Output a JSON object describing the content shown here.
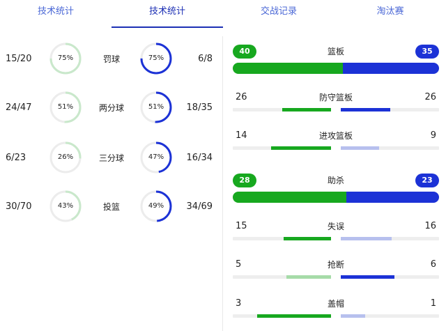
{
  "tabs": [
    {
      "label": "技术统计",
      "active": false
    },
    {
      "label": "技术统计",
      "active": true
    },
    {
      "label": "交战记录",
      "active": false
    },
    {
      "label": "淘汰赛",
      "active": false
    }
  ],
  "colors": {
    "home": "#17a81f",
    "home_light": "#a6dba8",
    "away": "#1c32d6",
    "away_light": "#b7c0ee",
    "ring_track": "#ececec",
    "ring_home_light": "#c9e8cb"
  },
  "shooting": [
    {
      "category": "罚球",
      "home_made": "15/20",
      "home_pct": 75,
      "away_made": "6/8",
      "away_pct": 75
    },
    {
      "category": "两分球",
      "home_made": "24/47",
      "home_pct": 51,
      "away_made": "18/35",
      "away_pct": 51
    },
    {
      "category": "三分球",
      "home_made": "6/23",
      "home_pct": 26,
      "away_made": "16/34",
      "away_pct": 47
    },
    {
      "category": "投篮",
      "home_made": "30/70",
      "home_pct": 43,
      "away_made": "34/69",
      "away_pct": 49
    }
  ],
  "team_stats": {
    "rebounds": {
      "label": "篮板",
      "home": 40,
      "away": 35
    },
    "def_rebounds": {
      "label": "防守篮板",
      "home": 26,
      "away": 26,
      "home_emph": true,
      "away_emph": true
    },
    "off_rebounds": {
      "label": "进攻篮板",
      "home": 14,
      "away": 9,
      "home_emph": true,
      "away_emph": false
    },
    "assists": {
      "label": "助杀",
      "home": 28,
      "away": 23
    },
    "turnovers": {
      "label": "失误",
      "home": 15,
      "away": 16,
      "home_emph": true,
      "away_emph": false
    },
    "steals": {
      "label": "抢断",
      "home": 5,
      "away": 6,
      "home_emph": false,
      "away_emph": true
    },
    "blocks": {
      "label": "盖帽",
      "home": 3,
      "away": 1,
      "home_emph": true,
      "away_emph": false
    }
  }
}
